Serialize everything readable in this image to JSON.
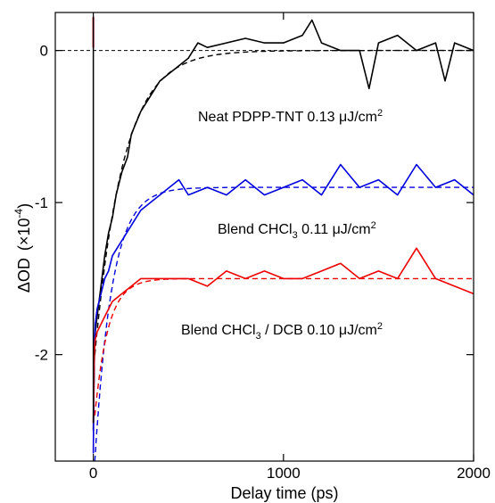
{
  "chart_data": {
    "type": "line",
    "xlabel": "Delay time (ps)",
    "ylabel_main": "ΔOD",
    "ylabel_unit_prefix": "(×10",
    "ylabel_unit_exp": "-4",
    "ylabel_unit_suffix": ")",
    "xlim": [
      -200,
      2000
    ],
    "ylim": [
      -2.7,
      0.25
    ],
    "xticks": [
      0,
      1000,
      2000
    ],
    "xtick_labels": [
      "0",
      "1000",
      "2000"
    ],
    "yticks": [
      0,
      -1,
      -2
    ],
    "ytick_labels": [
      "0",
      "-1",
      "-2"
    ],
    "zero_line": "dashed",
    "grid": false,
    "series": [
      {
        "name": "Neat PDPP-TNT  0.13 μJ/cm²",
        "color": "#000000",
        "fit": {
          "baseline": 0.0,
          "amplitude": -2.0,
          "tau": 150,
          "t0": 8
        },
        "x": [
          0,
          5,
          10,
          20,
          40,
          60,
          80,
          100,
          120,
          150,
          180,
          200,
          250,
          300,
          350,
          400,
          450,
          500,
          550,
          600,
          700,
          800,
          900,
          1000,
          1100,
          1150,
          1200,
          1300,
          1400,
          1450,
          1500,
          1600,
          1700,
          1800,
          1850,
          1900,
          2000
        ],
        "y": [
          -2.5,
          -2.05,
          -1.85,
          -1.75,
          -1.55,
          -1.35,
          -1.2,
          -1.1,
          -0.95,
          -0.8,
          -0.7,
          -0.55,
          -0.4,
          -0.3,
          -0.2,
          -0.15,
          -0.1,
          -0.05,
          0.05,
          0.02,
          0.05,
          0.08,
          0.05,
          0.05,
          0.1,
          0.2,
          0.05,
          0.0,
          0.0,
          -0.25,
          0.05,
          0.1,
          0.0,
          0.05,
          -0.2,
          0.05,
          0.0
        ]
      },
      {
        "name": "Blend CHCl₃  0.11 μJ/cm²",
        "color": "#0000dd",
        "fit": {
          "baseline": -0.9,
          "amplitude": -1.8,
          "tau": 90,
          "t0": 8
        },
        "x": [
          0,
          5,
          10,
          20,
          40,
          60,
          80,
          100,
          150,
          200,
          250,
          300,
          350,
          400,
          450,
          500,
          600,
          700,
          800,
          900,
          1000,
          1100,
          1200,
          1300,
          1400,
          1500,
          1600,
          1700,
          1800,
          1900,
          2000
        ],
        "y": [
          -2.65,
          -2.0,
          -1.8,
          -1.7,
          -1.6,
          -1.5,
          -1.45,
          -1.35,
          -1.25,
          -1.15,
          -1.05,
          -1.0,
          -0.95,
          -0.9,
          -0.85,
          -0.95,
          -0.9,
          -0.95,
          -0.85,
          -0.95,
          -0.9,
          -0.85,
          -0.95,
          -0.75,
          -0.9,
          -0.85,
          -0.95,
          -0.75,
          -0.9,
          -0.85,
          -0.95
        ]
      },
      {
        "name": "Blend CHCl₃ / DCB  0.10 μJ/cm²",
        "color": "#ee0000",
        "fit": {
          "baseline": -1.5,
          "amplitude": -0.9,
          "tau": 70,
          "t0": 8
        },
        "x": [
          0,
          5,
          10,
          20,
          40,
          60,
          80,
          100,
          150,
          200,
          250,
          300,
          400,
          500,
          600,
          700,
          800,
          900,
          1000,
          1100,
          1200,
          1300,
          1400,
          1500,
          1600,
          1700,
          1800,
          1900,
          2000
        ],
        "y": [
          -2.45,
          -2.0,
          -1.9,
          -1.85,
          -1.8,
          -1.75,
          -1.7,
          -1.65,
          -1.6,
          -1.55,
          -1.5,
          -1.5,
          -1.5,
          -1.5,
          -1.55,
          -1.45,
          -1.5,
          -1.45,
          -1.5,
          -1.5,
          -1.45,
          -1.4,
          -1.5,
          -1.45,
          -1.5,
          -1.3,
          -1.5,
          -1.55,
          -1.6
        ]
      }
    ]
  }
}
